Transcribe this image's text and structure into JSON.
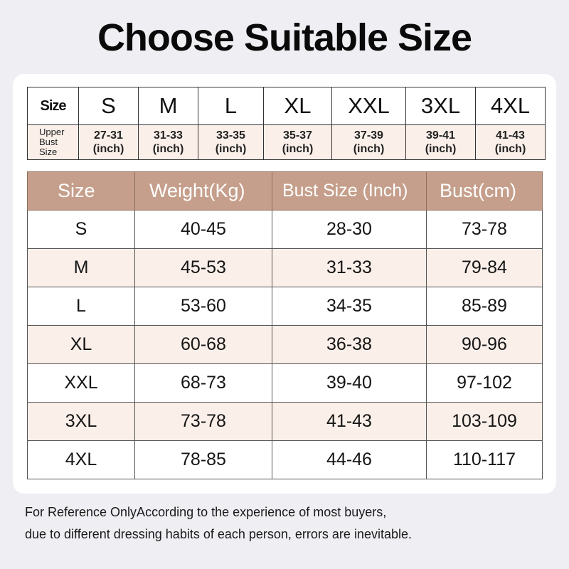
{
  "title": "Choose Suitable Size",
  "upper_bust_table": {
    "size_label": "Size",
    "upper_label_lines": [
      "Upper",
      "Bust",
      "Size"
    ],
    "unit": "(inch)",
    "columns": [
      {
        "size": "S",
        "range": "27-31"
      },
      {
        "size": "M",
        "range": "31-33"
      },
      {
        "size": "L",
        "range": "33-35"
      },
      {
        "size": "XL",
        "range": "35-37"
      },
      {
        "size": "XXL",
        "range": "37-39"
      },
      {
        "size": "3XL",
        "range": "39-41"
      },
      {
        "size": "4XL",
        "range": "41-43"
      }
    ]
  },
  "size_table": {
    "headers": [
      "Size",
      "Weight(Kg)",
      "Bust Size (Inch)",
      "Bust(cm)"
    ],
    "rows": [
      [
        "S",
        "40-45",
        "28-30",
        "73-78"
      ],
      [
        "M",
        "45-53",
        "31-33",
        "79-84"
      ],
      [
        "L",
        "53-60",
        "34-35",
        "85-89"
      ],
      [
        "XL",
        "60-68",
        "36-38",
        "90-96"
      ],
      [
        "XXL",
        "68-73",
        "39-40",
        "97-102"
      ],
      [
        "3XL",
        "73-78",
        "41-43",
        "103-109"
      ],
      [
        "4XL",
        "78-85",
        "44-46",
        "110-117"
      ]
    ]
  },
  "notes": [
    "For Reference OnlyAccording to the experience of most buyers,",
    "due to different dressing habits of each person, errors are inevitable."
  ],
  "colors": {
    "header_bg": "#c59f8b",
    "alt_row_bg": "#faefe9",
    "page_bg": "#efeef2"
  }
}
